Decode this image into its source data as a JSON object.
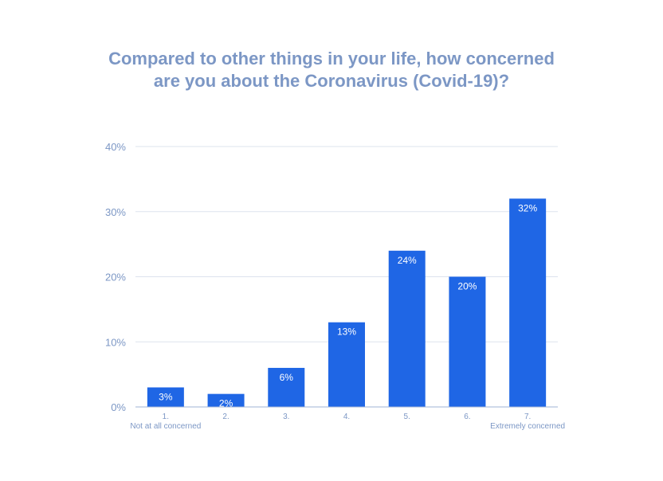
{
  "chart_data": {
    "type": "bar",
    "title_lines": [
      "Compared to other things in your life, how concerned",
      "are you about the Coronavirus (Covid-19)?"
    ],
    "categories": [
      "1.",
      "2.",
      "3.",
      "4.",
      "5.",
      "6.",
      "7."
    ],
    "category_sublabels": [
      "Not at all concerned",
      "",
      "",
      "",
      "",
      "",
      "Extremely concerned"
    ],
    "values": [
      3,
      2,
      6,
      13,
      24,
      20,
      32
    ],
    "data_labels": [
      "3%",
      "2%",
      "6%",
      "13%",
      "24%",
      "20%",
      "32%"
    ],
    "ylim": [
      0,
      40
    ],
    "yticks": [
      0,
      10,
      20,
      30,
      40
    ],
    "ytick_labels": [
      "0%",
      "10%",
      "20%",
      "30%",
      "40%"
    ],
    "grid": true,
    "legend": "none",
    "colors": {
      "bar": "#1f66e5",
      "text": "#7c97c5",
      "grid": "#dde3ee",
      "axis": "#9fb3d6",
      "label": "#ffffff"
    }
  }
}
